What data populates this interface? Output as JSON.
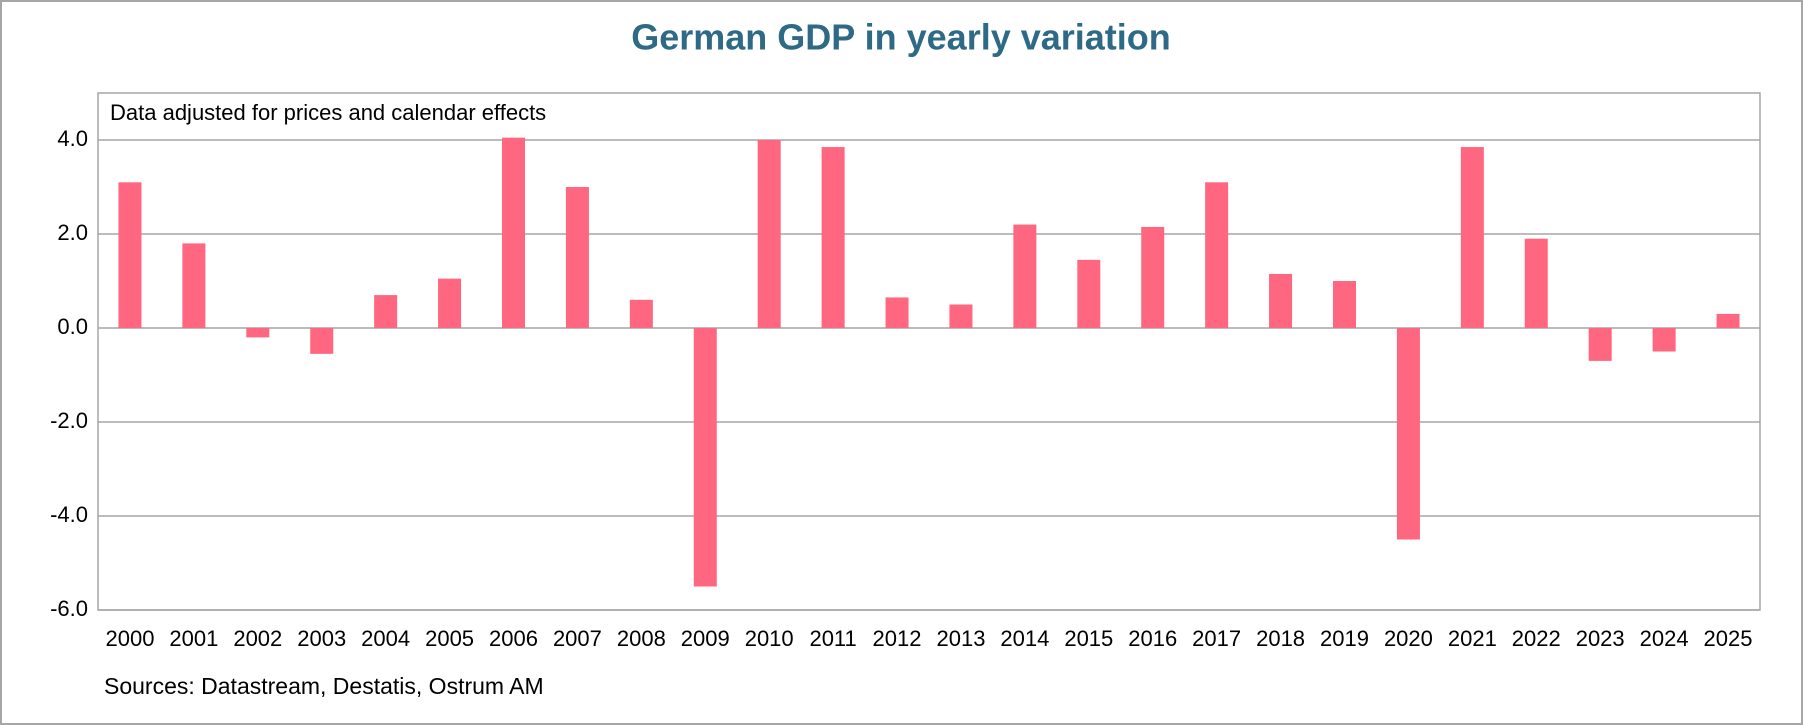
{
  "chart_data": {
    "type": "bar",
    "title": "German GDP in yearly variation",
    "annotation": "Data adjusted for prices and calendar effects",
    "source": "Sources: Datastream, Destatis, Ostrum AM",
    "categories": [
      "2000",
      "2001",
      "2002",
      "2003",
      "2004",
      "2005",
      "2006",
      "2007",
      "2008",
      "2009",
      "2010",
      "2011",
      "2012",
      "2013",
      "2014",
      "2015",
      "2016",
      "2017",
      "2018",
      "2019",
      "2020",
      "2021",
      "2022",
      "2023",
      "2024",
      "2025"
    ],
    "values": [
      3.1,
      1.8,
      -0.2,
      -0.55,
      0.7,
      1.05,
      4.05,
      3.0,
      0.6,
      -5.5,
      4.0,
      3.85,
      0.65,
      0.5,
      2.2,
      1.45,
      2.15,
      3.1,
      1.15,
      1.0,
      -4.5,
      3.85,
      1.9,
      -0.7,
      -0.5,
      0.3
    ],
    "color": "#ff6680",
    "ylim": [
      -6,
      5
    ],
    "yticks": [
      {
        "value": -6,
        "label": "-6.0"
      },
      {
        "value": -4,
        "label": "-4.0"
      },
      {
        "value": -2,
        "label": "-2.0"
      },
      {
        "value": 0,
        "label": "0.0"
      },
      {
        "value": 2,
        "label": "2.0"
      },
      {
        "value": 4,
        "label": "4.0"
      }
    ],
    "grid": true
  }
}
